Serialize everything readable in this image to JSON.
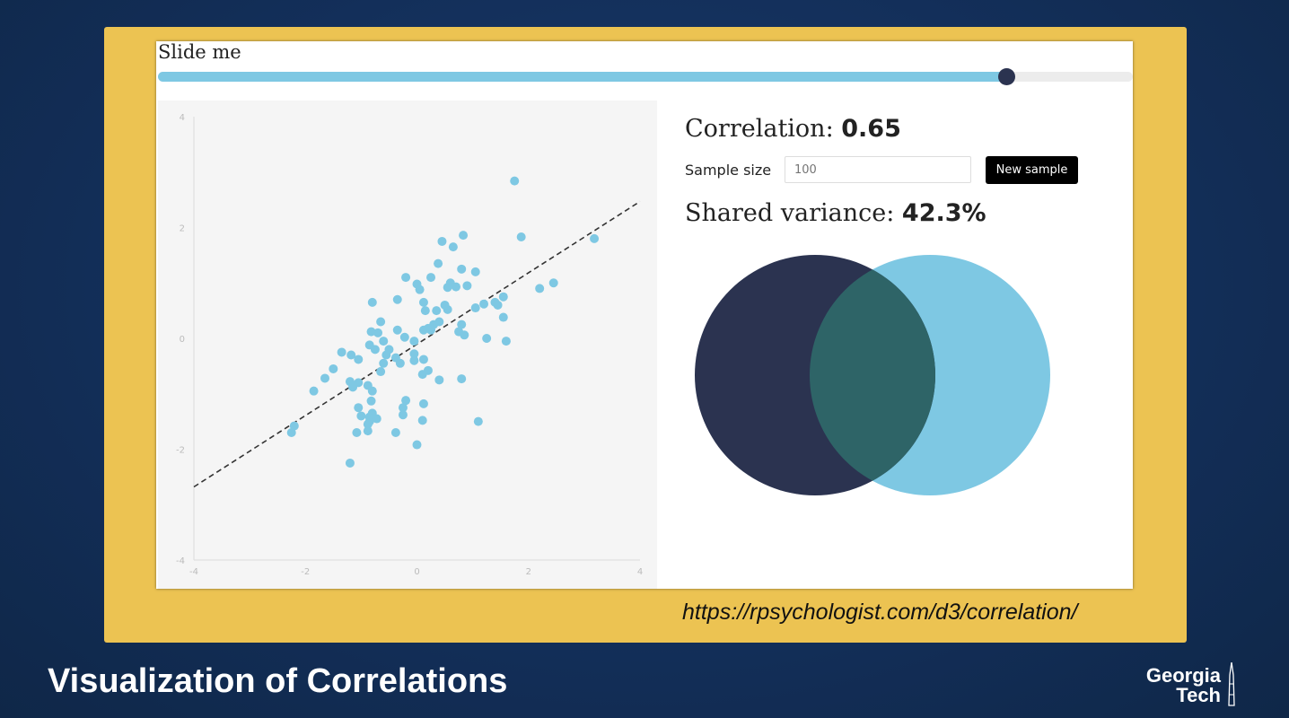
{
  "slider": {
    "label": "Slide me",
    "value_fraction": 0.87
  },
  "stats": {
    "correlation_label": "Correlation:",
    "correlation_value": "0.65",
    "sample_size_label": "Sample size",
    "sample_size_placeholder": "100",
    "new_sample_button": "New sample",
    "shared_variance_label": "Shared variance:",
    "shared_variance_value": "42.3%"
  },
  "colors": {
    "accent": "#7ec8e3",
    "dark_circle": "#2b3350",
    "overlap": "#2e6467",
    "frame": "#ecc352",
    "background": "#132f5a"
  },
  "chart_data": {
    "type": "scatter",
    "xlim": [
      -4,
      4
    ],
    "ylim": [
      -4,
      4
    ],
    "x_ticks": [
      "-4",
      "-2",
      "0",
      "2",
      "4"
    ],
    "y_ticks": [
      "4",
      "2",
      "0",
      "-2",
      "-4"
    ],
    "regression_line": {
      "x": [
        -4,
        4
      ],
      "y": [
        -2.68,
        2.47
      ]
    },
    "points": [
      [
        1.75,
        2.84
      ],
      [
        1.87,
        1.83
      ],
      [
        3.18,
        1.8
      ],
      [
        0.83,
        1.86
      ],
      [
        0.45,
        1.75
      ],
      [
        0.65,
        1.65
      ],
      [
        0.38,
        1.35
      ],
      [
        0.6,
        1.0
      ],
      [
        0.8,
        1.25
      ],
      [
        1.05,
        1.2
      ],
      [
        -0.2,
        1.1
      ],
      [
        0.25,
        1.1
      ],
      [
        0.0,
        0.98
      ],
      [
        0.05,
        0.88
      ],
      [
        0.7,
        0.93
      ],
      [
        0.9,
        0.95
      ],
      [
        2.2,
        0.9
      ],
      [
        2.45,
        1.0
      ],
      [
        1.55,
        0.75
      ],
      [
        1.4,
        0.65
      ],
      [
        1.2,
        0.62
      ],
      [
        1.45,
        0.6
      ],
      [
        1.05,
        0.55
      ],
      [
        -0.35,
        0.7
      ],
      [
        -0.8,
        0.65
      ],
      [
        0.12,
        0.65
      ],
      [
        0.5,
        0.6
      ],
      [
        0.15,
        0.5
      ],
      [
        0.35,
        0.5
      ],
      [
        0.55,
        0.52
      ],
      [
        1.55,
        0.38
      ],
      [
        0.4,
        0.3
      ],
      [
        0.3,
        0.25
      ],
      [
        0.8,
        0.25
      ],
      [
        0.2,
        0.18
      ],
      [
        -0.65,
        0.3
      ],
      [
        -0.82,
        0.12
      ],
      [
        -0.7,
        0.1
      ],
      [
        -0.35,
        0.15
      ],
      [
        0.12,
        0.15
      ],
      [
        0.75,
        0.12
      ],
      [
        0.85,
        0.06
      ],
      [
        1.25,
        0.0
      ],
      [
        1.6,
        -0.05
      ],
      [
        -0.22,
        0.02
      ],
      [
        -0.85,
        -0.12
      ],
      [
        -0.75,
        -0.2
      ],
      [
        -0.55,
        -0.3
      ],
      [
        -0.05,
        -0.05
      ],
      [
        -1.35,
        -0.25
      ],
      [
        -1.18,
        -0.3
      ],
      [
        -1.05,
        -0.38
      ],
      [
        -0.38,
        -0.35
      ],
      [
        -0.05,
        -0.28
      ],
      [
        -0.6,
        -0.45
      ],
      [
        -0.3,
        -0.45
      ],
      [
        -0.05,
        -0.4
      ],
      [
        0.12,
        -0.38
      ],
      [
        -1.5,
        -0.55
      ],
      [
        -0.65,
        -0.6
      ],
      [
        0.2,
        -0.58
      ],
      [
        0.1,
        -0.65
      ],
      [
        -1.65,
        -0.72
      ],
      [
        -1.2,
        -0.78
      ],
      [
        -1.05,
        -0.8
      ],
      [
        -0.88,
        -0.85
      ],
      [
        0.4,
        -0.75
      ],
      [
        0.8,
        -0.73
      ],
      [
        -1.15,
        -0.88
      ],
      [
        -0.8,
        -0.95
      ],
      [
        -1.85,
        -0.95
      ],
      [
        -0.82,
        -1.13
      ],
      [
        -0.2,
        -1.12
      ],
      [
        0.12,
        -1.18
      ],
      [
        -1.05,
        -1.25
      ],
      [
        -0.8,
        -1.35
      ],
      [
        -0.85,
        -1.42
      ],
      [
        -0.72,
        -1.45
      ],
      [
        -0.25,
        -1.38
      ],
      [
        0.1,
        -1.48
      ],
      [
        -0.85,
        -1.5
      ],
      [
        -0.88,
        -1.55
      ],
      [
        1.1,
        -1.5
      ],
      [
        -2.2,
        -1.58
      ],
      [
        -2.25,
        -1.7
      ],
      [
        -1.08,
        -1.7
      ],
      [
        -0.88,
        -1.67
      ],
      [
        -0.38,
        -1.7
      ],
      [
        0.0,
        -1.92
      ],
      [
        -1.2,
        -2.25
      ],
      [
        -0.25,
        -1.25
      ],
      [
        -0.6,
        -0.05
      ],
      [
        0.25,
        0.15
      ],
      [
        -1.0,
        -1.4
      ],
      [
        0.55,
        0.92
      ],
      [
        -0.5,
        -0.2
      ]
    ]
  },
  "url": "https://rpsychologist.com/d3/correlation/",
  "slide_title": "Visualization of Correlations",
  "logo": {
    "line1": "Georgia",
    "line2": "Tech"
  }
}
